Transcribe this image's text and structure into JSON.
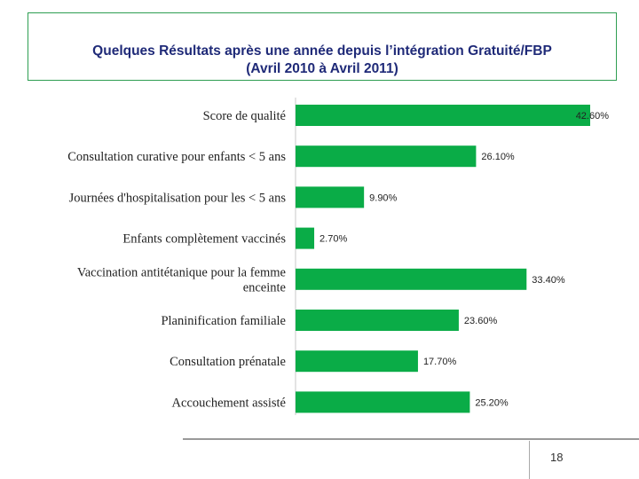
{
  "slide": {
    "title_line1": "Quelques Résultats après une année depuis l’intégration Gratuité/FBP",
    "title_line2": "(Avril 2010 à Avril 2011)",
    "page_number": "18"
  },
  "colors": {
    "bar": "#0aac47",
    "title": "#1f2a78",
    "frame": "#2e9e52"
  },
  "chart_data": {
    "type": "bar",
    "orientation": "horizontal",
    "categories": [
      [
        "Score de qualité"
      ],
      [
        "Consultation curative pour enfants < 5 ans"
      ],
      [
        "Journées d'hospitalisation pour les < 5 ans"
      ],
      [
        "Enfants complètement vaccinés"
      ],
      [
        "Vaccination antitétanique pour la femme",
        "enceinte"
      ],
      [
        "Planinification familiale"
      ],
      [
        "Consultation prénatale"
      ],
      [
        "Accouchement assisté"
      ]
    ],
    "values": [
      42.6,
      26.1,
      9.9,
      2.7,
      33.4,
      23.6,
      17.7,
      25.2
    ],
    "value_labels": [
      "42.60%",
      "26.10%",
      "9.90%",
      "2.70%",
      "33.40%",
      "23.60%",
      "17.70%",
      "25.20%"
    ],
    "xlim": [
      0,
      42.6
    ],
    "title": "",
    "xlabel": "",
    "ylabel": "",
    "grid": false,
    "legend": "none"
  }
}
